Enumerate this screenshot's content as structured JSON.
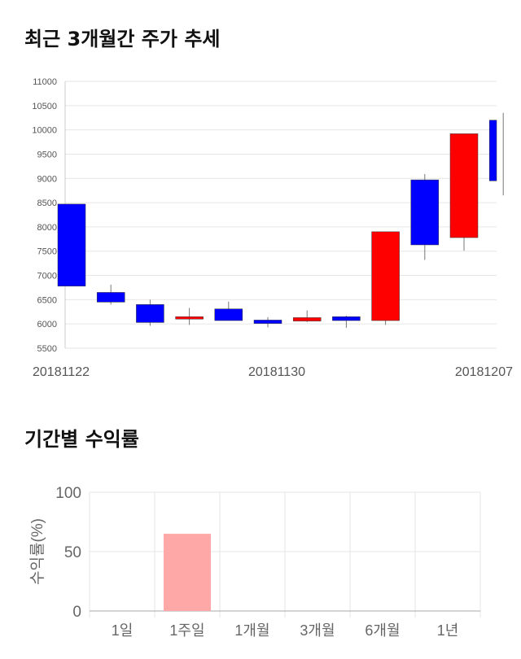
{
  "candle_section": {
    "title": "최근 3개월간 주가 추세"
  },
  "returns_section": {
    "title": "기간별 수익률"
  },
  "colors": {
    "up": "#ff0000",
    "down": "#0000ff",
    "returns_bar": "#ffa8a8",
    "grid": "#e6e6e6"
  },
  "chart_data": [
    {
      "type": "candlestick",
      "ylim": [
        5500,
        11000
      ],
      "yticks": [
        5500,
        6000,
        6500,
        7000,
        7500,
        8000,
        8500,
        9000,
        9500,
        10000,
        10500,
        11000
      ],
      "xtick_labels": [
        {
          "index": 0,
          "label": "20181122"
        },
        {
          "index": 6,
          "label": "20181130"
        },
        {
          "index": 11,
          "label": "20181207"
        }
      ],
      "grid": true,
      "candles": [
        {
          "open": 8470,
          "close": 6780,
          "high": 8470,
          "low": 6780
        },
        {
          "open": 6650,
          "close": 6450,
          "high": 6810,
          "low": 6400
        },
        {
          "open": 6400,
          "close": 6030,
          "high": 6500,
          "low": 5960
        },
        {
          "open": 6100,
          "close": 6150,
          "high": 6330,
          "low": 5980
        },
        {
          "open": 6310,
          "close": 6070,
          "high": 6460,
          "low": 6070
        },
        {
          "open": 6080,
          "close": 6010,
          "high": 6140,
          "low": 5930
        },
        {
          "open": 6060,
          "close": 6130,
          "high": 6280,
          "low": 6040
        },
        {
          "open": 6150,
          "close": 6070,
          "high": 6170,
          "low": 5920
        },
        {
          "open": 6070,
          "close": 7900,
          "high": 7900,
          "low": 5980
        },
        {
          "open": 8970,
          "close": 7630,
          "high": 9090,
          "low": 7320
        },
        {
          "open": 7780,
          "close": 9920,
          "high": 9920,
          "low": 7510
        },
        {
          "open": 10200,
          "close": 8950,
          "high": 10350,
          "low": 8650
        }
      ]
    },
    {
      "type": "bar",
      "categories": [
        "1일",
        "1주일",
        "1개월",
        "3개월",
        "6개월",
        "1년"
      ],
      "values": [
        0,
        65,
        0,
        0,
        0,
        0
      ],
      "ylabel": "수익률(%)",
      "ylim": [
        0,
        100
      ],
      "yticks": [
        0,
        50,
        100
      ],
      "grid": true
    }
  ]
}
